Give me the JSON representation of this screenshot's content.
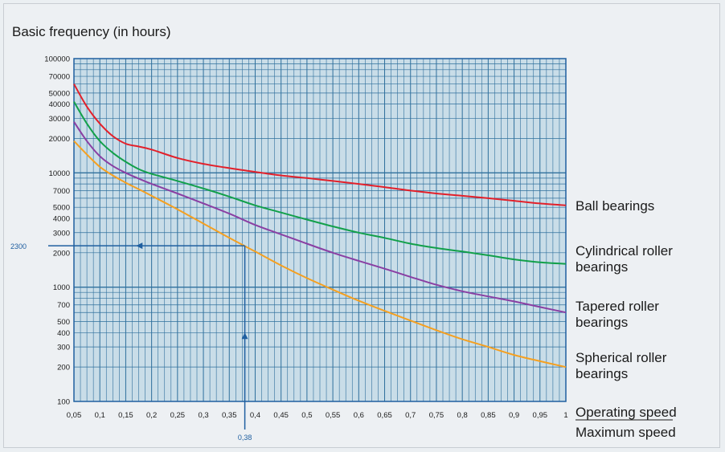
{
  "chart_data": {
    "type": "line",
    "title": "Basic frequency (in hours)",
    "xlabel_numerator": "Operating speed",
    "xlabel_denominator": "Maximum speed",
    "xlim": [
      0.05,
      1.0
    ],
    "ylim": [
      100,
      100000
    ],
    "yscale": "log",
    "grid": true,
    "x_tick_labels": [
      "0,05",
      "0,1",
      "0,15",
      "0,2",
      "0,25",
      "0,3",
      "0,35",
      "0,4",
      "0,45",
      "0,5",
      "0,55",
      "0,6",
      "0,65",
      "0,7",
      "0,75",
      "0,8",
      "0,85",
      "0,9",
      "0,95",
      "1"
    ],
    "y_ticks": [
      100,
      200,
      300,
      400,
      500,
      700,
      1000,
      2000,
      3000,
      4000,
      5000,
      7000,
      10000,
      20000,
      30000,
      40000,
      50000,
      70000,
      100000
    ],
    "y_tick_labels": [
      "100",
      "200",
      "300",
      "400",
      "500",
      "700",
      "1000",
      "2000",
      "3000",
      "4000",
      "5000",
      "7000",
      "10000",
      "20000",
      "30000",
      "40000",
      "50000",
      "70000",
      "100000"
    ],
    "series": [
      {
        "name": "Ball bearings",
        "color": "#e3202a",
        "x": [
          0.05,
          0.075,
          0.1,
          0.125,
          0.15,
          0.175,
          0.2,
          0.25,
          0.3,
          0.35,
          0.4,
          0.45,
          0.5,
          0.55,
          0.6,
          0.65,
          0.7,
          0.75,
          0.8,
          0.85,
          0.9,
          0.95,
          1.0
        ],
        "y": [
          60000,
          38000,
          27000,
          21000,
          18000,
          17000,
          16000,
          13500,
          12000,
          11000,
          10200,
          9500,
          9000,
          8500,
          8000,
          7500,
          7000,
          6600,
          6300,
          6000,
          5700,
          5400,
          5200
        ]
      },
      {
        "name": "Cylindrical roller bearings",
        "color": "#12a04a",
        "x": [
          0.05,
          0.075,
          0.1,
          0.125,
          0.15,
          0.175,
          0.2,
          0.25,
          0.3,
          0.35,
          0.4,
          0.45,
          0.5,
          0.55,
          0.6,
          0.65,
          0.7,
          0.75,
          0.8,
          0.85,
          0.9,
          0.95,
          1.0
        ],
        "y": [
          42000,
          27000,
          19000,
          15000,
          12500,
          10800,
          9800,
          8500,
          7300,
          6200,
          5200,
          4500,
          3900,
          3400,
          3000,
          2700,
          2400,
          2200,
          2050,
          1900,
          1750,
          1650,
          1600
        ]
      },
      {
        "name": "Tapered roller bearings",
        "color": "#8a3fa3",
        "x": [
          0.05,
          0.075,
          0.1,
          0.125,
          0.15,
          0.175,
          0.2,
          0.25,
          0.3,
          0.35,
          0.4,
          0.45,
          0.5,
          0.55,
          0.6,
          0.65,
          0.7,
          0.75,
          0.8,
          0.85,
          0.9,
          0.95,
          1.0
        ],
        "y": [
          28000,
          19000,
          14000,
          11500,
          10000,
          8900,
          8000,
          6600,
          5400,
          4400,
          3500,
          2900,
          2400,
          2000,
          1700,
          1450,
          1230,
          1050,
          920,
          830,
          750,
          670,
          600
        ]
      },
      {
        "name": "Spherical roller bearings",
        "color": "#f5a020",
        "x": [
          0.05,
          0.075,
          0.1,
          0.125,
          0.15,
          0.175,
          0.2,
          0.25,
          0.3,
          0.35,
          0.4,
          0.45,
          0.5,
          0.55,
          0.6,
          0.65,
          0.7,
          0.75,
          0.8,
          0.85,
          0.9,
          0.95,
          1.0
        ],
        "y": [
          19000,
          14500,
          11300,
          9500,
          8200,
          7200,
          6300,
          4800,
          3600,
          2700,
          2050,
          1550,
          1200,
          950,
          760,
          620,
          510,
          420,
          350,
          300,
          255,
          225,
          200
        ]
      }
    ],
    "annotation": {
      "x": 0.38,
      "y": 2300,
      "x_label": "0,38",
      "y_label": "2300",
      "color": "#1f5fa0"
    },
    "colors": {
      "plot_background": "#c9dde8",
      "grid": "#2e6f9c",
      "axis": "#1f5fa0"
    }
  }
}
